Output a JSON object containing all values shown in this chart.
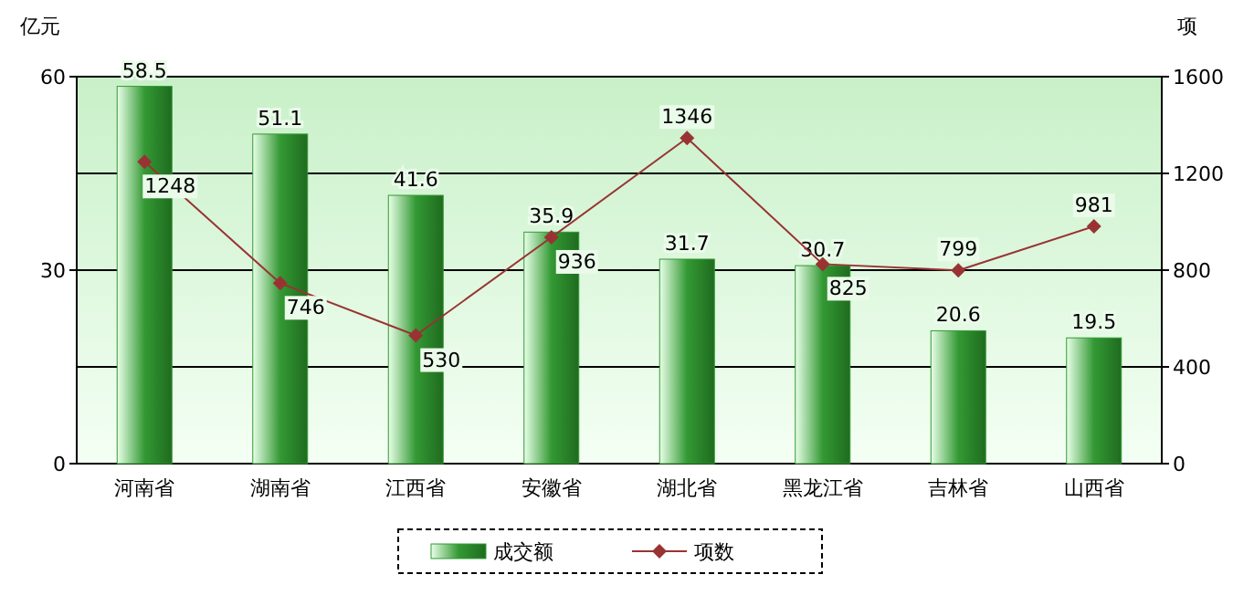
{
  "chart_data": {
    "type": "bar",
    "ylabel": "亿元",
    "y2label": "项",
    "categories": [
      "河南省",
      "湖南省",
      "江西省",
      "安徽省",
      "湖北省",
      "黑龙江省",
      "吉林省",
      "山西省"
    ],
    "series": [
      {
        "name": "成交额",
        "color": "#339933",
        "values": [
          58.5,
          51.1,
          41.6,
          35.9,
          31.7,
          30.7,
          20.6,
          19.5
        ]
      },
      {
        "name": "项数",
        "type": "line",
        "axis": "y2",
        "color": "#993333",
        "values": [
          1248,
          746,
          530,
          936,
          1346,
          825,
          799,
          981
        ]
      }
    ],
    "ylim": [
      0,
      60
    ],
    "yticks": [
      0,
      30,
      60
    ],
    "y2lim": [
      0,
      1600
    ],
    "y2ticks": [
      0,
      400,
      800,
      1200,
      1600
    ],
    "grid": "y",
    "legend": "bottom",
    "data_labels": true,
    "marker": "diamond",
    "line_style": "solid"
  }
}
